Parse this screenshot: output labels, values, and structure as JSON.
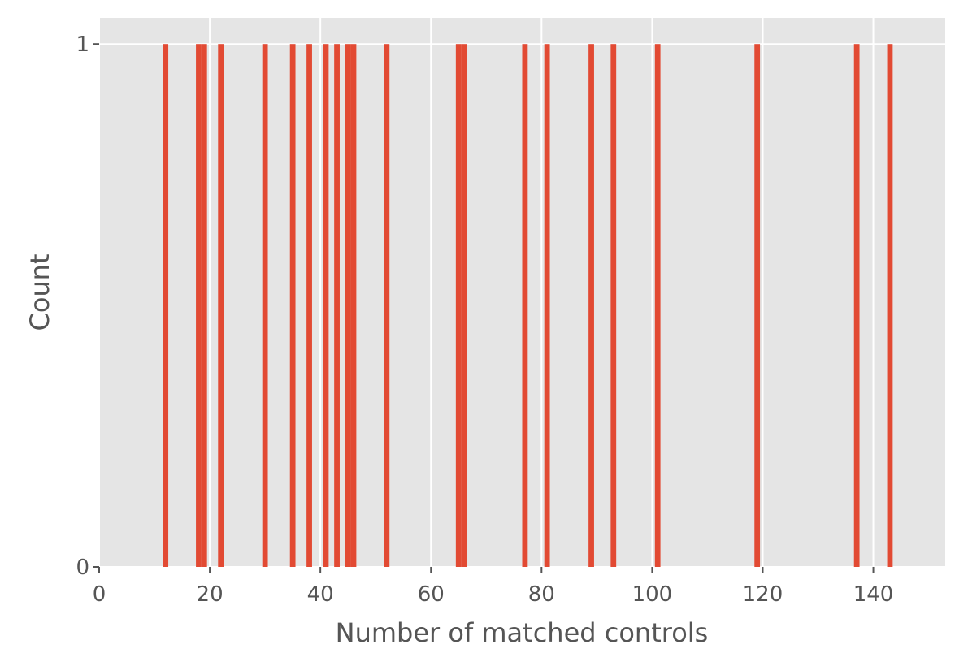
{
  "chart_data": {
    "type": "bar",
    "title": "",
    "xlabel": "Number of matched controls",
    "ylabel": "Count",
    "xlim": [
      0,
      153
    ],
    "ylim": [
      0,
      1.05
    ],
    "x_ticks": [
      0,
      20,
      40,
      60,
      80,
      100,
      120,
      140
    ],
    "y_ticks": [
      0,
      1
    ],
    "grid": true,
    "bar_width": 1,
    "bar_color": "#E24A33",
    "background_color": "#E5E5E5",
    "grid_color": "#FFFFFF",
    "x": [
      12,
      18,
      19,
      22,
      30,
      35,
      38,
      41,
      43,
      45,
      46,
      52,
      65,
      66,
      77,
      81,
      89,
      93,
      101,
      119,
      137,
      143
    ],
    "values": [
      1,
      1,
      1,
      1,
      1,
      1,
      1,
      1,
      1,
      1,
      1,
      1,
      1,
      1,
      1,
      1,
      1,
      1,
      1,
      1,
      1,
      1
    ]
  }
}
